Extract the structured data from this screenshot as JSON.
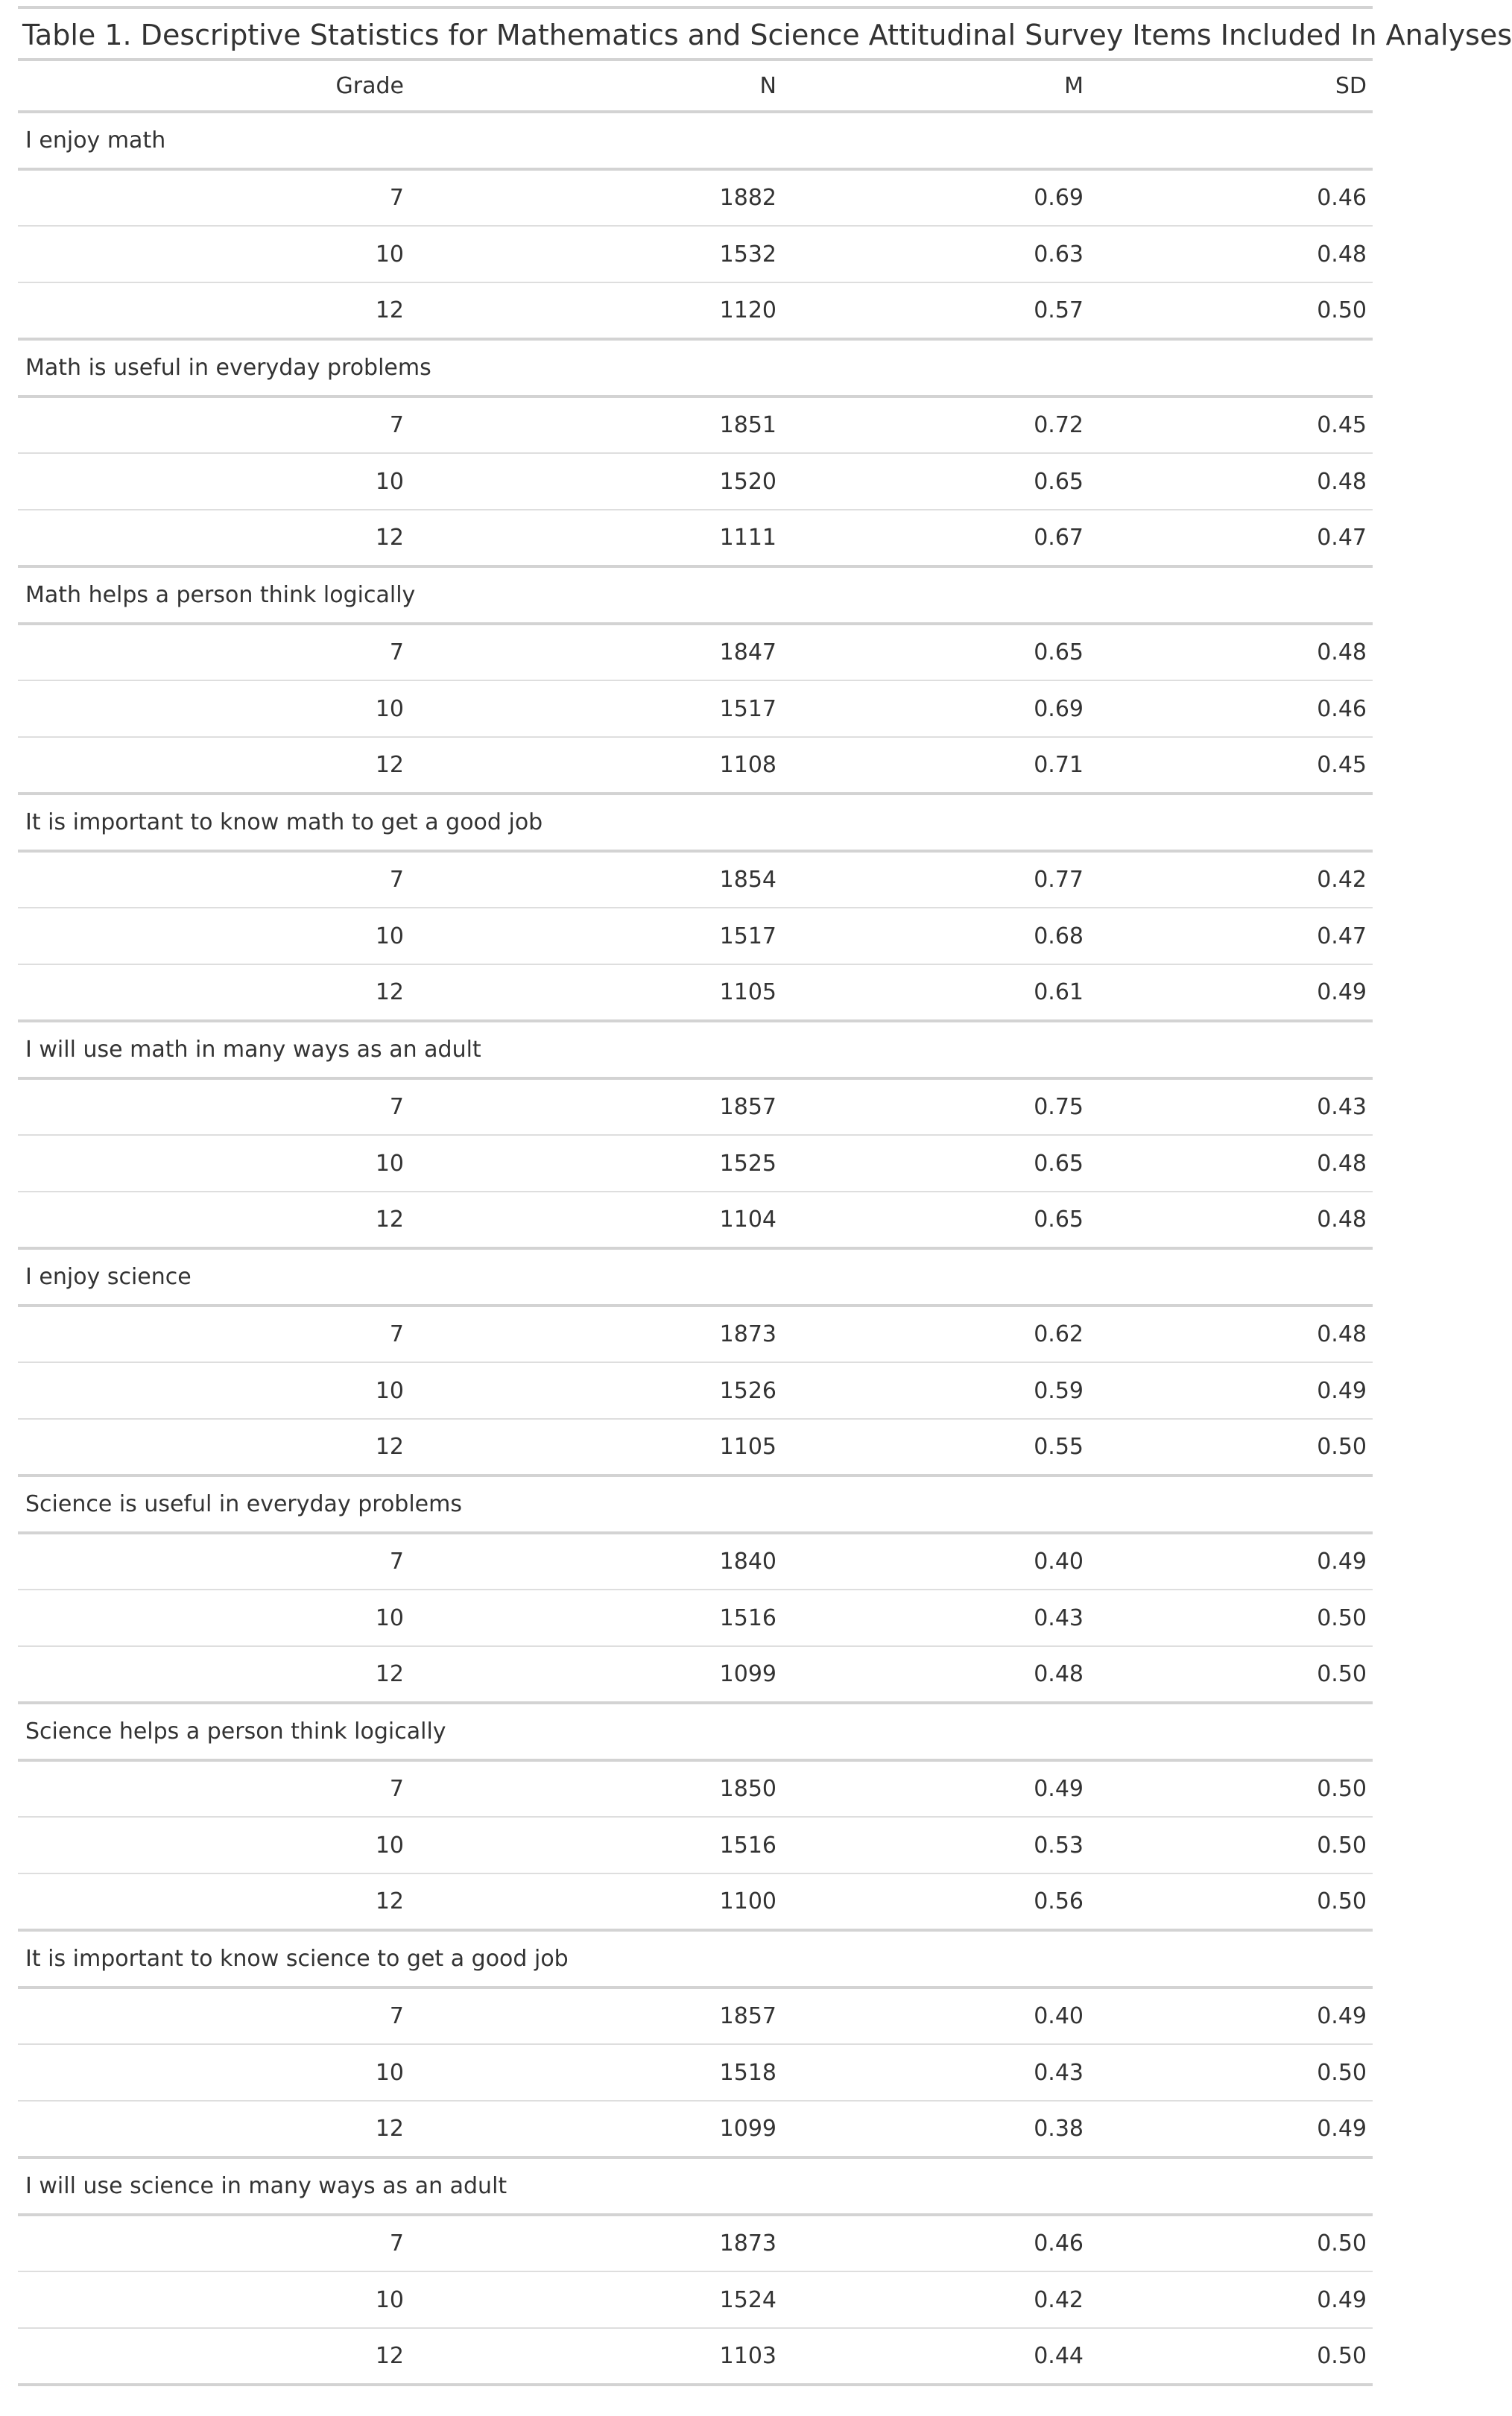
{
  "caption": "Table 1. Descriptive Statistics for Mathematics and Science Attitudinal Survey Items Included In Analyses",
  "columns": [
    "Grade",
    "N",
    "M",
    "SD"
  ],
  "groups": [
    {
      "label": "I enjoy math",
      "rows": [
        [
          "7",
          "1882",
          "0.69",
          "0.46"
        ],
        [
          "10",
          "1532",
          "0.63",
          "0.48"
        ],
        [
          "12",
          "1120",
          "0.57",
          "0.50"
        ]
      ]
    },
    {
      "label": "Math is useful in everyday problems",
      "rows": [
        [
          "7",
          "1851",
          "0.72",
          "0.45"
        ],
        [
          "10",
          "1520",
          "0.65",
          "0.48"
        ],
        [
          "12",
          "1111",
          "0.67",
          "0.47"
        ]
      ]
    },
    {
      "label": "Math helps a person think logically",
      "rows": [
        [
          "7",
          "1847",
          "0.65",
          "0.48"
        ],
        [
          "10",
          "1517",
          "0.69",
          "0.46"
        ],
        [
          "12",
          "1108",
          "0.71",
          "0.45"
        ]
      ]
    },
    {
      "label": "It is important to know math to get a good job",
      "rows": [
        [
          "7",
          "1854",
          "0.77",
          "0.42"
        ],
        [
          "10",
          "1517",
          "0.68",
          "0.47"
        ],
        [
          "12",
          "1105",
          "0.61",
          "0.49"
        ]
      ]
    },
    {
      "label": "I will use math in many ways as an adult",
      "rows": [
        [
          "7",
          "1857",
          "0.75",
          "0.43"
        ],
        [
          "10",
          "1525",
          "0.65",
          "0.48"
        ],
        [
          "12",
          "1104",
          "0.65",
          "0.48"
        ]
      ]
    },
    {
      "label": "I enjoy science",
      "rows": [
        [
          "7",
          "1873",
          "0.62",
          "0.48"
        ],
        [
          "10",
          "1526",
          "0.59",
          "0.49"
        ],
        [
          "12",
          "1105",
          "0.55",
          "0.50"
        ]
      ]
    },
    {
      "label": "Science is useful in everyday problems",
      "rows": [
        [
          "7",
          "1840",
          "0.40",
          "0.49"
        ],
        [
          "10",
          "1516",
          "0.43",
          "0.50"
        ],
        [
          "12",
          "1099",
          "0.48",
          "0.50"
        ]
      ]
    },
    {
      "label": "Science helps a person think logically",
      "rows": [
        [
          "7",
          "1850",
          "0.49",
          "0.50"
        ],
        [
          "10",
          "1516",
          "0.53",
          "0.50"
        ],
        [
          "12",
          "1100",
          "0.56",
          "0.50"
        ]
      ]
    },
    {
      "label": "It is important to know science to get a good job",
      "rows": [
        [
          "7",
          "1857",
          "0.40",
          "0.49"
        ],
        [
          "10",
          "1518",
          "0.43",
          "0.50"
        ],
        [
          "12",
          "1099",
          "0.38",
          "0.49"
        ]
      ]
    },
    {
      "label": "I will use science in many ways as an adult",
      "rows": [
        [
          "7",
          "1873",
          "0.46",
          "0.50"
        ],
        [
          "10",
          "1524",
          "0.42",
          "0.49"
        ],
        [
          "12",
          "1103",
          "0.44",
          "0.50"
        ]
      ]
    }
  ]
}
